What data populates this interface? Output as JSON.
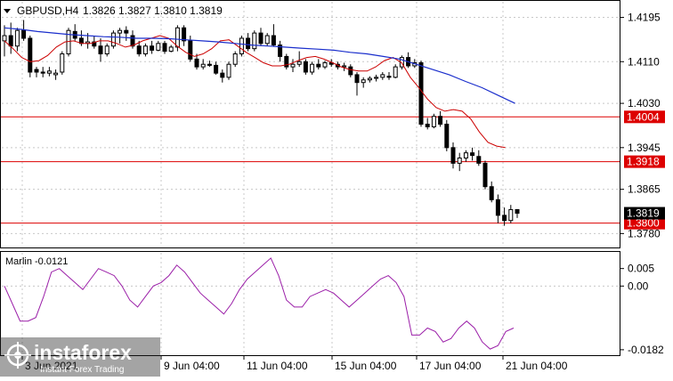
{
  "header": {
    "symbol": "GBPUSD,H4",
    "ohlc": "1.3826 1.3827 1.3810 1.3819"
  },
  "watermark": {
    "brand": "instaforex",
    "tagline": "Instant Forex Trading"
  },
  "colors": {
    "candle": "#000000",
    "ma_fast": "#cc0000",
    "ma_slow": "#1a2ecc",
    "hline": "#dd0000",
    "hline_label_bg": "#dd0000",
    "price_label_bg": "#000000",
    "osc": "#9b1fa8",
    "grid": "#c8c8c8"
  },
  "chart_data": [
    {
      "type": "candlestick",
      "title": "GBPUSD,H4",
      "ylim": [
        1.3755,
        1.4225
      ],
      "y_ticks": [
        "1.4195",
        "1.4110",
        "1.4030",
        "1.3945",
        "1.3865",
        "1.3780"
      ],
      "x_tick_labels": [
        "3 Jun 2021",
        "9 Jun 04:00",
        "11 Jun 04:00",
        "15 Jun 04:00",
        "17 Jun 04:00",
        "21 Jun 04:00"
      ],
      "candles_ohlc": [
        [
          1.415,
          1.418,
          1.412,
          1.416
        ],
        [
          1.416,
          1.4185,
          1.4125,
          1.414
        ],
        [
          1.414,
          1.4175,
          1.413,
          1.417
        ],
        [
          1.417,
          1.419,
          1.415,
          1.4155
        ],
        [
          1.4155,
          1.416,
          1.408,
          1.409
        ],
        [
          1.4095,
          1.41,
          1.408,
          1.409
        ],
        [
          1.409,
          1.41,
          1.408,
          1.4088
        ],
        [
          1.4088,
          1.41,
          1.4082,
          1.4092
        ],
        [
          1.4085,
          1.4095,
          1.4075,
          1.4088
        ],
        [
          1.409,
          1.413,
          1.4085,
          1.4125
        ],
        [
          1.4125,
          1.4175,
          1.412,
          1.417
        ],
        [
          1.4168,
          1.4182,
          1.415,
          1.4155
        ],
        [
          1.4155,
          1.417,
          1.414,
          1.4145
        ],
        [
          1.4145,
          1.4165,
          1.4135,
          1.4148
        ],
        [
          1.4148,
          1.416,
          1.4135,
          1.414
        ],
        [
          1.414,
          1.4155,
          1.411,
          1.4125
        ],
        [
          1.4125,
          1.4145,
          1.412,
          1.414
        ],
        [
          1.414,
          1.417,
          1.4135,
          1.4165
        ],
        [
          1.4165,
          1.4175,
          1.4145,
          1.417
        ],
        [
          1.417,
          1.4178,
          1.415,
          1.4165
        ],
        [
          1.416,
          1.417,
          1.4135,
          1.414
        ],
        [
          1.414,
          1.415,
          1.412,
          1.4125
        ],
        [
          1.4125,
          1.4145,
          1.412,
          1.414
        ],
        [
          1.414,
          1.415,
          1.4125,
          1.4132
        ],
        [
          1.4132,
          1.415,
          1.413,
          1.4145
        ],
        [
          1.4145,
          1.415,
          1.4125,
          1.413
        ],
        [
          1.413,
          1.4142,
          1.4128,
          1.4138
        ],
        [
          1.4138,
          1.418,
          1.413,
          1.4175
        ],
        [
          1.4175,
          1.418,
          1.414,
          1.415
        ],
        [
          1.415,
          1.416,
          1.411,
          1.4115
        ],
        [
          1.4115,
          1.4125,
          1.4095,
          1.41
        ],
        [
          1.41,
          1.4115,
          1.4095,
          1.4105
        ],
        [
          1.4105,
          1.4112,
          1.41,
          1.4103
        ],
        [
          1.4103,
          1.411,
          1.4085,
          1.4088
        ],
        [
          1.4088,
          1.4095,
          1.407,
          1.408
        ],
        [
          1.408,
          1.411,
          1.4075,
          1.4105
        ],
        [
          1.4105,
          1.413,
          1.41,
          1.4125
        ],
        [
          1.4125,
          1.416,
          1.412,
          1.4155
        ],
        [
          1.4155,
          1.4165,
          1.413,
          1.4135
        ],
        [
          1.4135,
          1.417,
          1.413,
          1.4165
        ],
        [
          1.4165,
          1.4175,
          1.414,
          1.4145
        ],
        [
          1.4145,
          1.4165,
          1.414,
          1.416
        ],
        [
          1.416,
          1.4182,
          1.414,
          1.4142
        ],
        [
          1.4142,
          1.415,
          1.411,
          1.412
        ],
        [
          1.412,
          1.4125,
          1.4095,
          1.41
        ],
        [
          1.41,
          1.4115,
          1.409,
          1.4105
        ],
        [
          1.4105,
          1.413,
          1.41,
          1.411
        ],
        [
          1.411,
          1.4115,
          1.4085,
          1.409
        ],
        [
          1.409,
          1.411,
          1.4085,
          1.4105
        ],
        [
          1.4105,
          1.4115,
          1.4095,
          1.41
        ],
        [
          1.41,
          1.4112,
          1.4096,
          1.4108
        ],
        [
          1.4108,
          1.4115,
          1.41,
          1.4105
        ],
        [
          1.4105,
          1.411,
          1.4095,
          1.41
        ],
        [
          1.41,
          1.4108,
          1.4092,
          1.4102
        ],
        [
          1.41,
          1.4105,
          1.408,
          1.4085
        ],
        [
          1.4085,
          1.409,
          1.4045,
          1.407
        ],
        [
          1.407,
          1.408,
          1.406,
          1.4075
        ],
        [
          1.4075,
          1.4082,
          1.407,
          1.4078
        ],
        [
          1.4078,
          1.4085,
          1.4072,
          1.408
        ],
        [
          1.408,
          1.409,
          1.4075,
          1.4085
        ],
        [
          1.4082,
          1.409,
          1.4075,
          1.408
        ],
        [
          1.408,
          1.4105,
          1.4078,
          1.41
        ],
        [
          1.41,
          1.4122,
          1.4095,
          1.4118
        ],
        [
          1.4118,
          1.4128,
          1.4098,
          1.4102
        ],
        [
          1.4102,
          1.4115,
          1.4098,
          1.4108
        ],
        [
          1.4108,
          1.4112,
          1.3985,
          1.399
        ],
        [
          1.399,
          1.4002,
          1.398,
          1.3985
        ],
        [
          1.3985,
          1.401,
          1.3982,
          1.4005
        ],
        [
          1.4005,
          1.4015,
          1.3985,
          1.399
        ],
        [
          1.399,
          1.3998,
          1.3938,
          1.3945
        ],
        [
          1.3945,
          1.3955,
          1.3905,
          1.3915
        ],
        [
          1.3915,
          1.3935,
          1.39,
          1.3925
        ],
        [
          1.3925,
          1.394,
          1.3918,
          1.3935
        ],
        [
          1.3935,
          1.3945,
          1.392,
          1.393
        ],
        [
          1.3928,
          1.394,
          1.391,
          1.3915
        ],
        [
          1.3915,
          1.392,
          1.3865,
          1.387
        ],
        [
          1.387,
          1.388,
          1.384,
          1.3845
        ],
        [
          1.3845,
          1.3855,
          1.38,
          1.3815
        ],
        [
          1.3815,
          1.383,
          1.3795,
          1.3805
        ],
        [
          1.3805,
          1.3835,
          1.38,
          1.3826
        ],
        [
          1.3826,
          1.3827,
          1.381,
          1.3819
        ]
      ],
      "series": [
        {
          "values": [
            1.415,
            1.4135,
            1.4118,
            1.411,
            1.4112,
            1.4122,
            1.4138,
            1.4148,
            1.415,
            1.4145,
            1.4145,
            1.415,
            1.415,
            1.4145,
            1.4138,
            1.4142,
            1.415,
            1.4155,
            1.416,
            1.4155,
            1.414,
            1.4128,
            1.412,
            1.4125,
            1.4135,
            1.415,
            1.4152,
            1.414,
            1.4128,
            1.4118,
            1.4108,
            1.4102,
            1.4102,
            1.4105,
            1.4112,
            1.4118,
            1.412,
            1.4115,
            1.4108,
            1.41,
            1.4095,
            1.4092,
            1.4092,
            1.41,
            1.4112,
            1.4118,
            1.4108,
            1.408,
            1.406,
            1.4038,
            1.4022,
            1.4015,
            1.4018,
            1.4015,
            1.4,
            1.3975,
            1.3955,
            1.3948,
            1.3945
          ]
        },
        {
          "values": [
            1.4175,
            1.4172,
            1.4168,
            1.4165,
            1.4162,
            1.416,
            1.4158,
            1.4157,
            1.4155,
            1.4155,
            1.4154,
            1.4152,
            1.415,
            1.4148,
            1.4145,
            1.4142,
            1.414,
            1.4138,
            1.4136,
            1.4134,
            1.4132,
            1.4128,
            1.4125,
            1.412,
            1.4115,
            1.4105,
            1.4095,
            1.4085,
            1.4072,
            1.406,
            1.4045,
            1.403
          ]
        }
      ],
      "hlines": [
        {
          "value": 1.4004,
          "label": "1.4004"
        },
        {
          "value": 1.3918,
          "label": "1.3918"
        },
        {
          "value": 1.38,
          "label": "1.3800"
        }
      ],
      "last_price_label": "1.3819"
    },
    {
      "type": "line",
      "title": "Marlin -0.0121",
      "ylim": [
        -0.0195,
        0.0095
      ],
      "y_ticks": [
        "0.005",
        "0.00",
        "-0.0182"
      ],
      "values": [
        0.0,
        -0.005,
        -0.01,
        -0.01,
        -0.009,
        -0.003,
        0.004,
        0.005,
        0.003,
        0.001,
        -0.001,
        0.002,
        0.005,
        0.004,
        0.003,
        0.0,
        -0.004,
        -0.006,
        -0.003,
        0.0,
        0.001,
        0.003,
        0.006,
        0.004,
        0.001,
        -0.002,
        -0.004,
        -0.006,
        -0.008,
        -0.005,
        -0.001,
        0.002,
        0.004,
        0.006,
        0.008,
        0.003,
        -0.004,
        -0.006,
        -0.006,
        -0.003,
        -0.002,
        -0.001,
        -0.002,
        -0.004,
        -0.006,
        -0.004,
        -0.002,
        0.0,
        0.002,
        0.003,
        0.001,
        -0.003,
        -0.014,
        -0.014,
        -0.012,
        -0.013,
        -0.016,
        -0.015,
        -0.012,
        -0.01,
        -0.012,
        -0.016,
        -0.018,
        -0.017,
        -0.013,
        -0.012
      ]
    }
  ]
}
